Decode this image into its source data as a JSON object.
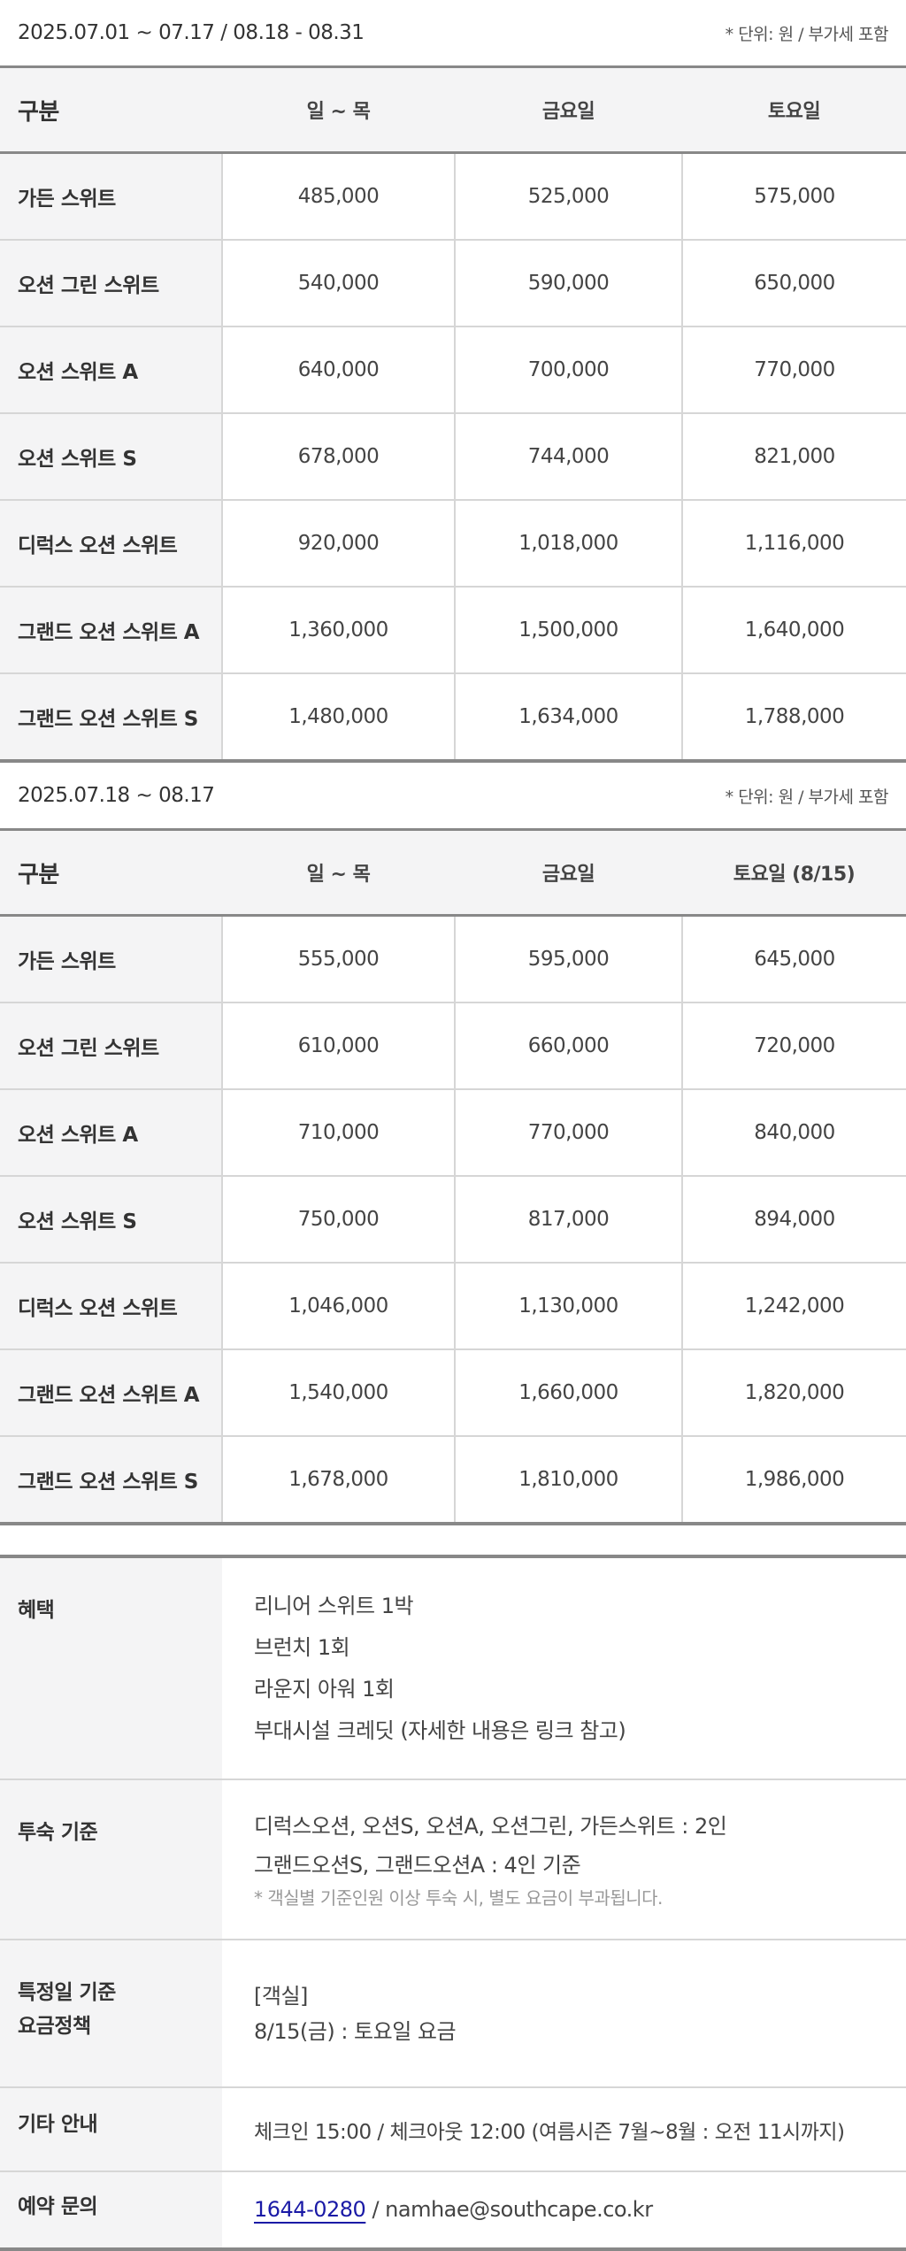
{
  "periods": [
    {
      "title": "2025.07.01 ~ 07.17 / 08.18 - 08.31",
      "unit_note": "* 단위: 원 / 부가세 포함",
      "columns": [
        "구분",
        "일 ~ 목",
        "금요일",
        "토요일"
      ],
      "rows": [
        [
          "가든 스위트",
          "485,000",
          "525,000",
          "575,000"
        ],
        [
          "오션 그린 스위트",
          "540,000",
          "590,000",
          "650,000"
        ],
        [
          "오션 스위트 A",
          "640,000",
          "700,000",
          "770,000"
        ],
        [
          "오션 스위트 S",
          "678,000",
          "744,000",
          "821,000"
        ],
        [
          "디럭스 오션 스위트",
          "920,000",
          "1,018,000",
          "1,116,000"
        ],
        [
          "그랜드 오션 스위트 A",
          "1,360,000",
          "1,500,000",
          "1,640,000"
        ],
        [
          "그랜드 오션 스위트 S",
          "1,480,000",
          "1,634,000",
          "1,788,000"
        ]
      ]
    },
    {
      "title": "2025.07.18 ~ 08.17",
      "unit_note": "* 단위: 원 / 부가세 포함",
      "columns": [
        "구분",
        "일 ~ 목",
        "금요일",
        "토요일 (8/15)"
      ],
      "rows": [
        [
          "가든 스위트",
          "555,000",
          "595,000",
          "645,000"
        ],
        [
          "오션 그린 스위트",
          "610,000",
          "660,000",
          "720,000"
        ],
        [
          "오션 스위트 A",
          "710,000",
          "770,000",
          "840,000"
        ],
        [
          "오션 스위트 S",
          "750,000",
          "817,000",
          "894,000"
        ],
        [
          "디럭스 오션 스위트",
          "1,046,000",
          "1,130,000",
          "1,242,000"
        ],
        [
          "그랜드 오션 스위트 A",
          "1,540,000",
          "1,660,000",
          "1,820,000"
        ],
        [
          "그랜드 오션 스위트 S",
          "1,678,000",
          "1,810,000",
          "1,986,000"
        ]
      ]
    }
  ],
  "info": {
    "benefits": {
      "label": "혜택",
      "lines": [
        "리니어 스위트 1박",
        "브런치 1회",
        "라운지 아워 1회",
        "부대시설 크레딧 (자세한 내용은 링크 참고)"
      ]
    },
    "occupancy": {
      "label": "투숙 기준",
      "lines": [
        "디럭스오션, 오션S, 오션A, 오션그린, 가든스위트 : 2인",
        "그랜드오션S, 그랜드오션A : 4인 기준"
      ],
      "note": "* 객실별 기준인원 이상 투숙 시, 별도 요금이 부과됩니다."
    },
    "special_days": {
      "label_line1": "특정일 기준",
      "label_line2": "요금정책",
      "lines": [
        "[객실]",
        "8/15(금) : 토요일 요금"
      ]
    },
    "other": {
      "label": "기타 안내",
      "text": "체크인 15:00 / 체크아웃 12:00 (여름시즌 7월~8월 : 오전 11시까지)"
    },
    "reservation": {
      "label": "예약 문의",
      "phone": "1644-0280",
      "separator": " / ",
      "email": "namhae@southcape.co.kr"
    }
  },
  "colors": {
    "label_bg": "#f4f4f5",
    "heavy_border": "#888888",
    "light_border": "#d6d6d6",
    "link": "#1a1aa6"
  }
}
